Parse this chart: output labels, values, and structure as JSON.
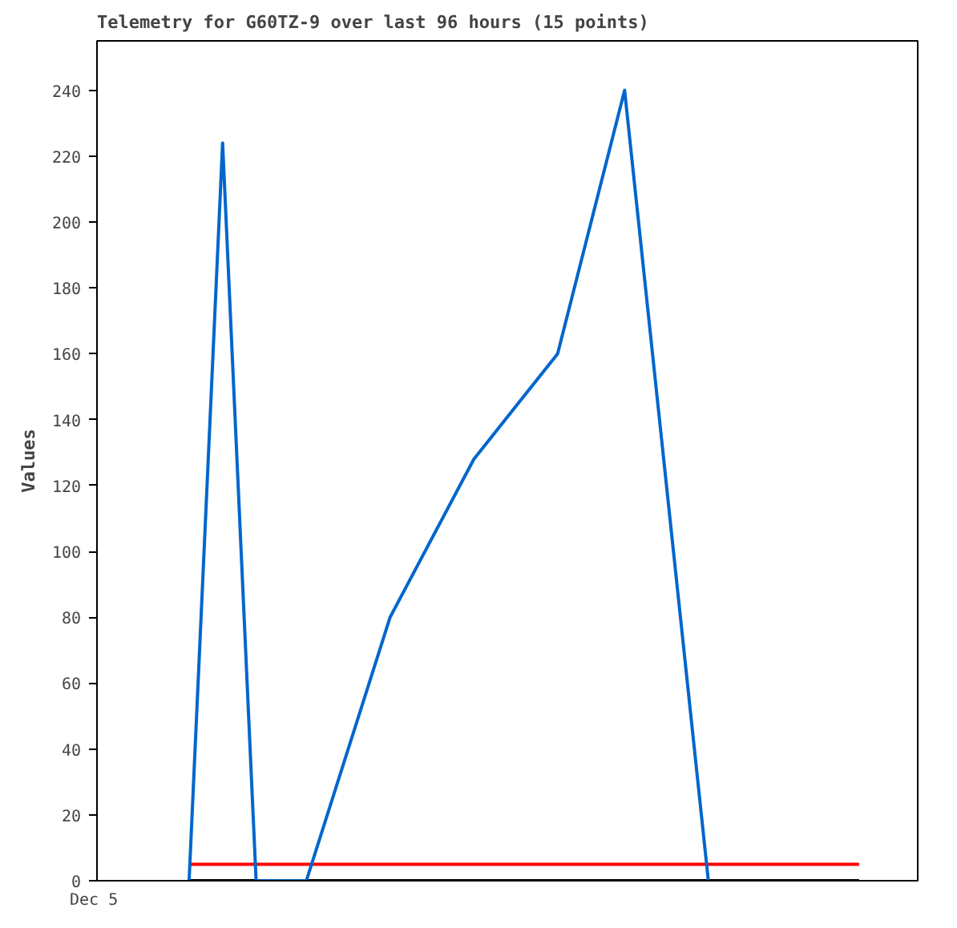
{
  "chart_data": {
    "type": "line",
    "title": "Telemetry for G60TZ-9 over last 96 hours (15 points)",
    "ylabel": "Values",
    "annotations": [
      "Dec 5"
    ],
    "categories": [
      null,
      null,
      null,
      null,
      null,
      null,
      null,
      null,
      null,
      null,
      null,
      null,
      null,
      null,
      null,
      null,
      null,
      null,
      null,
      null,
      null,
      null,
      null,
      null,
      null,
      null,
      null,
      null,
      null,
      null,
      null,
      null,
      null,
      null,
      null,
      null,
      null,
      null,
      null,
      null,
      null,
      null,
      null,
      null,
      null,
      null,
      null,
      null,
      null
    ],
    "ylim": [
      0,
      255
    ],
    "yticks": [
      0,
      20,
      40,
      60,
      80,
      100,
      120,
      140,
      160,
      180,
      200,
      220,
      240
    ],
    "tick_labels": "y",
    "grid": false,
    "marker": "none",
    "line_style": "solid",
    "series": [
      {
        "color": "#000000",
        "values": [
          null,
          null,
          null,
          null,
          null,
          0,
          null,
          null,
          null,
          null,
          null,
          null,
          null,
          null,
          null,
          null,
          null,
          null,
          null,
          null,
          null,
          null,
          null,
          null,
          null,
          null,
          null,
          null,
          null,
          null,
          null,
          null,
          null,
          null,
          null,
          null,
          null,
          null,
          null,
          null,
          null,
          null,
          null,
          null,
          null,
          0,
          null,
          null,
          null
        ]
      },
      {
        "color": "#ff0000",
        "values": [
          null,
          null,
          null,
          null,
          null,
          5,
          null,
          null,
          null,
          null,
          null,
          null,
          null,
          null,
          null,
          null,
          null,
          null,
          null,
          null,
          null,
          null,
          null,
          null,
          null,
          null,
          null,
          null,
          null,
          null,
          null,
          null,
          null,
          null,
          null,
          null,
          null,
          null,
          null,
          null,
          null,
          null,
          null,
          null,
          null,
          5,
          null,
          null,
          null
        ]
      },
      {
        "color": "#0066cc",
        "values": [
          null,
          null,
          null,
          null,
          null,
          0,
          null,
          224,
          null,
          0,
          null,
          null,
          0,
          null,
          null,
          null,
          null,
          80,
          null,
          null,
          null,
          null,
          128,
          null,
          null,
          null,
          null,
          160,
          null,
          null,
          null,
          240,
          null,
          null,
          null,
          null,
          0,
          null,
          null,
          null,
          null,
          null,
          null,
          null,
          null,
          null,
          null,
          null,
          null
        ]
      }
    ]
  }
}
